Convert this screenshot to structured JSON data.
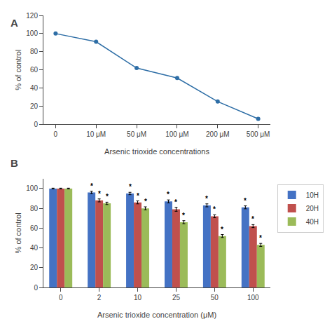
{
  "chart_data": [
    {
      "type": "line",
      "title": "A",
      "categories": [
        "0",
        "10 μM",
        "50 μM",
        "100 μM",
        "200 μM",
        "500 μM"
      ],
      "values": [
        100,
        91,
        62,
        51,
        25,
        6
      ],
      "color": "#2E6EA6",
      "marker": "circle",
      "ylim": [
        0,
        120
      ],
      "yticks": [
        0,
        20,
        40,
        60,
        80,
        100,
        120
      ],
      "xlabel": "Arsenic trioxide concentrations",
      "ylabel": "% of control",
      "grid": false
    },
    {
      "type": "bar",
      "title": "B",
      "categories": [
        "0",
        "2",
        "10",
        "25",
        "50",
        "100"
      ],
      "series": [
        {
          "name": "10H",
          "color": "#4472C4",
          "values": [
            100,
            96,
            95,
            87,
            83,
            81
          ],
          "errors": [
            0.4,
            1.2,
            1.2,
            1.5,
            1.5,
            1.5
          ],
          "annotations": [
            null,
            "*",
            "*",
            "*",
            "*",
            "*"
          ]
        },
        {
          "name": "20H",
          "color": "#C0504D",
          "values": [
            100,
            88,
            86,
            79,
            72,
            62
          ],
          "errors": [
            0.4,
            1.5,
            1.5,
            2.0,
            1.5,
            1.5
          ],
          "annotations": [
            null,
            "*",
            "*",
            "*",
            "*",
            "*"
          ]
        },
        {
          "name": "40H",
          "color": "#9BBB59",
          "values": [
            100,
            85,
            80,
            66,
            52,
            43
          ],
          "errors": [
            0.4,
            1.2,
            1.5,
            1.5,
            1.5,
            1.5
          ],
          "annotations": [
            null,
            "*",
            "*",
            "*",
            "*",
            "*"
          ]
        }
      ],
      "ylim": [
        0,
        110
      ],
      "yticks": [
        0,
        20,
        40,
        60,
        80,
        100
      ],
      "xlabel": "Arsenic trioxide concentration (μM)",
      "ylabel": "% of control",
      "legend": "right",
      "grid": false
    }
  ]
}
